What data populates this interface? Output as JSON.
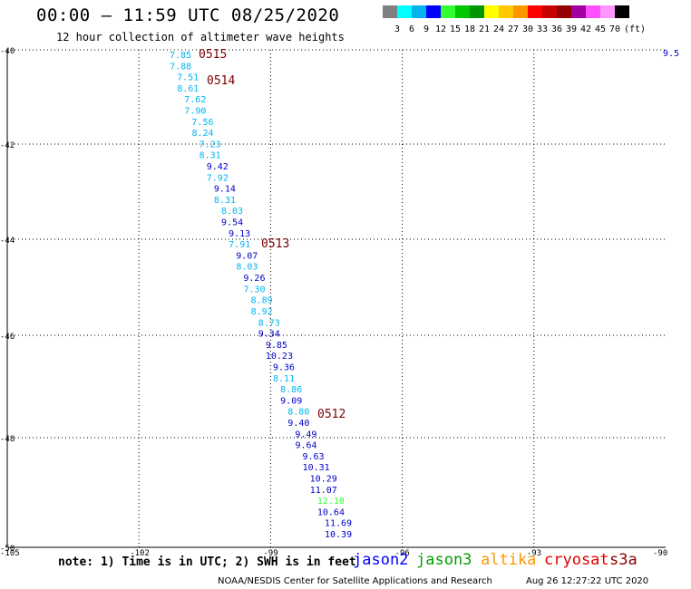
{
  "header": {
    "title": "00:00 – 11:59 UTC 08/25/2020",
    "subtitle": "12 hour collection of altimeter wave heights"
  },
  "color_scale": {
    "labels": [
      "3",
      "6",
      "9",
      "12",
      "15",
      "18",
      "21",
      "24",
      "27",
      "30",
      "33",
      "36",
      "39",
      "42",
      "45",
      "70",
      "(ft)"
    ],
    "colors": [
      "#808080",
      "#00ffff",
      "#00b4f0",
      "#0000ff",
      "#32ff32",
      "#00c800",
      "#009600",
      "#ffff00",
      "#ffc800",
      "#ff9600",
      "#ff0000",
      "#c80000",
      "#960000",
      "#a000a0",
      "#ff50ff",
      "#ff96ff",
      "#000000"
    ]
  },
  "axes": {
    "lon_ticks": [
      "-105",
      "-102",
      "-99",
      "-96",
      "-93",
      "-90"
    ],
    "lat_ticks": [
      "-40",
      "-42",
      "-44",
      "-46",
      "-48",
      "-50"
    ],
    "lon_range": [
      -105,
      -90
    ],
    "lat_range": [
      -40,
      -50
    ]
  },
  "pass_labels": [
    "0515",
    "0514",
    "0513",
    "0512"
  ],
  "track": {
    "values": [
      "7.85",
      "7.88",
      "7.51",
      "8.61",
      "7.62",
      "7.90",
      "7.56",
      "8.24",
      "7.23",
      "8.31",
      "9.42",
      "7.92",
      "9.14",
      "8.31",
      "8.03",
      "9.54",
      "9.13",
      "7.91",
      "9.07",
      "8.03",
      "9.26",
      "7.30",
      "8.89",
      "8.92",
      "8.73",
      "9.34",
      "9.85",
      "10.23",
      "9.36",
      "8.11",
      "8.86",
      "9.09",
      "8.80",
      "9.40",
      "9.49",
      "9.64",
      "9.63",
      "10.31",
      "10.29",
      "11.07",
      "12.10",
      "10.64",
      "11.69",
      "10.39"
    ],
    "colors": [
      "#00b4f0",
      "#00b4f0",
      "#00b4f0",
      "#00b4f0",
      "#00b4f0",
      "#00b4f0",
      "#00b4f0",
      "#00b4f0",
      "#00b4f0",
      "#00b4f0",
      "#0000c8",
      "#00b4f0",
      "#0000c8",
      "#00b4f0",
      "#00b4f0",
      "#0000c8",
      "#0000c8",
      "#00b4f0",
      "#0000c8",
      "#00b4f0",
      "#0000c8",
      "#00b4f0",
      "#00b4f0",
      "#00b4f0",
      "#00b4f0",
      "#0000c8",
      "#0000c8",
      "#0000c8",
      "#0000c8",
      "#00b4f0",
      "#00b4f0",
      "#0000c8",
      "#00b4f0",
      "#0000c8",
      "#0000c8",
      "#0000c8",
      "#0000c8",
      "#0000c8",
      "#0000c8",
      "#0000c8",
      "#32ff32",
      "#0000c8",
      "#0000c8",
      "#0000c8"
    ]
  },
  "edge_value": "9.5",
  "footnote": "note: 1) Time is in UTC; 2) SWH is in feet",
  "legend": [
    {
      "label": "jason2",
      "color": "#0000ff"
    },
    {
      "label": "jason3",
      "color": "#00a000"
    },
    {
      "label": "altika",
      "color": "#ff9600"
    },
    {
      "label": "cryosat",
      "color": "#e00000"
    },
    {
      "label": "s3a",
      "color": "#8b0000"
    }
  ],
  "credit": "NOAA/NESDIS Center for Satellite Applications and Research",
  "timestamp": "Aug 26 12:27:22 UTC 2020"
}
